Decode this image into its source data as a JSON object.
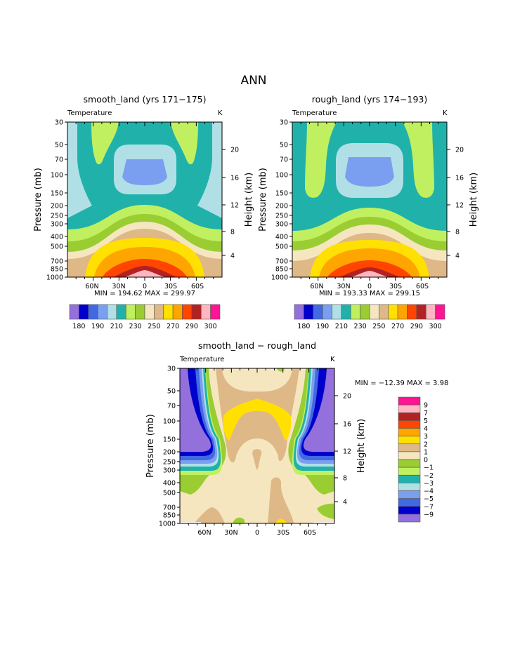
{
  "title": "ANN",
  "chart_data": [
    {
      "type": "contour",
      "title": "smooth_land (yrs 171−175)",
      "variable": "Temperature",
      "units": "K",
      "ylabel": "Pressure (mb)",
      "ylabel_right": "Height (km)",
      "yticks": [
        "30",
        "50",
        "70",
        "100",
        "150",
        "200",
        "250",
        "300",
        "400",
        "500",
        "700",
        "850",
        "1000"
      ],
      "yticks_right": [
        "20",
        "16",
        "12",
        "8",
        "4"
      ],
      "xticks": [
        "60N",
        "30N",
        "0",
        "30S",
        "60S"
      ],
      "min_max": "MIN = 194.62   MAX = 299.97",
      "min": 194.62,
      "max": 299.97,
      "colorbar": {
        "orientation": "horizontal",
        "labels": [
          "180",
          "190",
          "210",
          "230",
          "250",
          "270",
          "290",
          "300"
        ]
      }
    },
    {
      "type": "contour",
      "title": "rough_land (yrs 174−193)",
      "variable": "Temperature",
      "units": "K",
      "ylabel": "Pressure (mb)",
      "ylabel_right": "Height (km)",
      "yticks": [
        "30",
        "50",
        "70",
        "100",
        "150",
        "200",
        "250",
        "300",
        "400",
        "500",
        "700",
        "850",
        "1000"
      ],
      "yticks_right": [
        "20",
        "16",
        "12",
        "8",
        "4"
      ],
      "xticks": [
        "60N",
        "30N",
        "0",
        "30S",
        "60S"
      ],
      "min_max": "MIN = 193.33   MAX = 299.15",
      "min": 193.33,
      "max": 299.15,
      "colorbar": {
        "orientation": "horizontal",
        "labels": [
          "180",
          "190",
          "210",
          "230",
          "250",
          "270",
          "290",
          "300"
        ]
      }
    },
    {
      "type": "contour",
      "title": "smooth_land − rough_land",
      "variable": "Temperature",
      "units": "K",
      "ylabel": "Pressure (mb)",
      "ylabel_right": "Height (km)",
      "yticks": [
        "30",
        "50",
        "70",
        "100",
        "150",
        "200",
        "250",
        "300",
        "400",
        "500",
        "700",
        "850",
        "1000"
      ],
      "yticks_right": [
        "20",
        "16",
        "12",
        "8",
        "4"
      ],
      "xticks": [
        "60N",
        "30N",
        "0",
        "30S",
        "60S"
      ],
      "min_max": "MIN = −12.39   MAX =    3.98",
      "min": -12.39,
      "max": 3.98,
      "colorbar": {
        "orientation": "vertical",
        "labels": [
          "9",
          "7",
          "5",
          "4",
          "3",
          "2",
          "1",
          "0",
          "−1",
          "−2",
          "−3",
          "−4",
          "−5",
          "−7",
          "−9"
        ]
      }
    }
  ],
  "colors": [
    "#9370DB",
    "#0000CD",
    "#4169E1",
    "#7B9FF0",
    "#B0E0E6",
    "#20B2AA",
    "#C0F060",
    "#9ACD32",
    "#F5E6C0",
    "#DEB887",
    "#FFE000",
    "#FFA500",
    "#FF4500",
    "#B22222",
    "#FFB6C1",
    "#FF1493"
  ]
}
